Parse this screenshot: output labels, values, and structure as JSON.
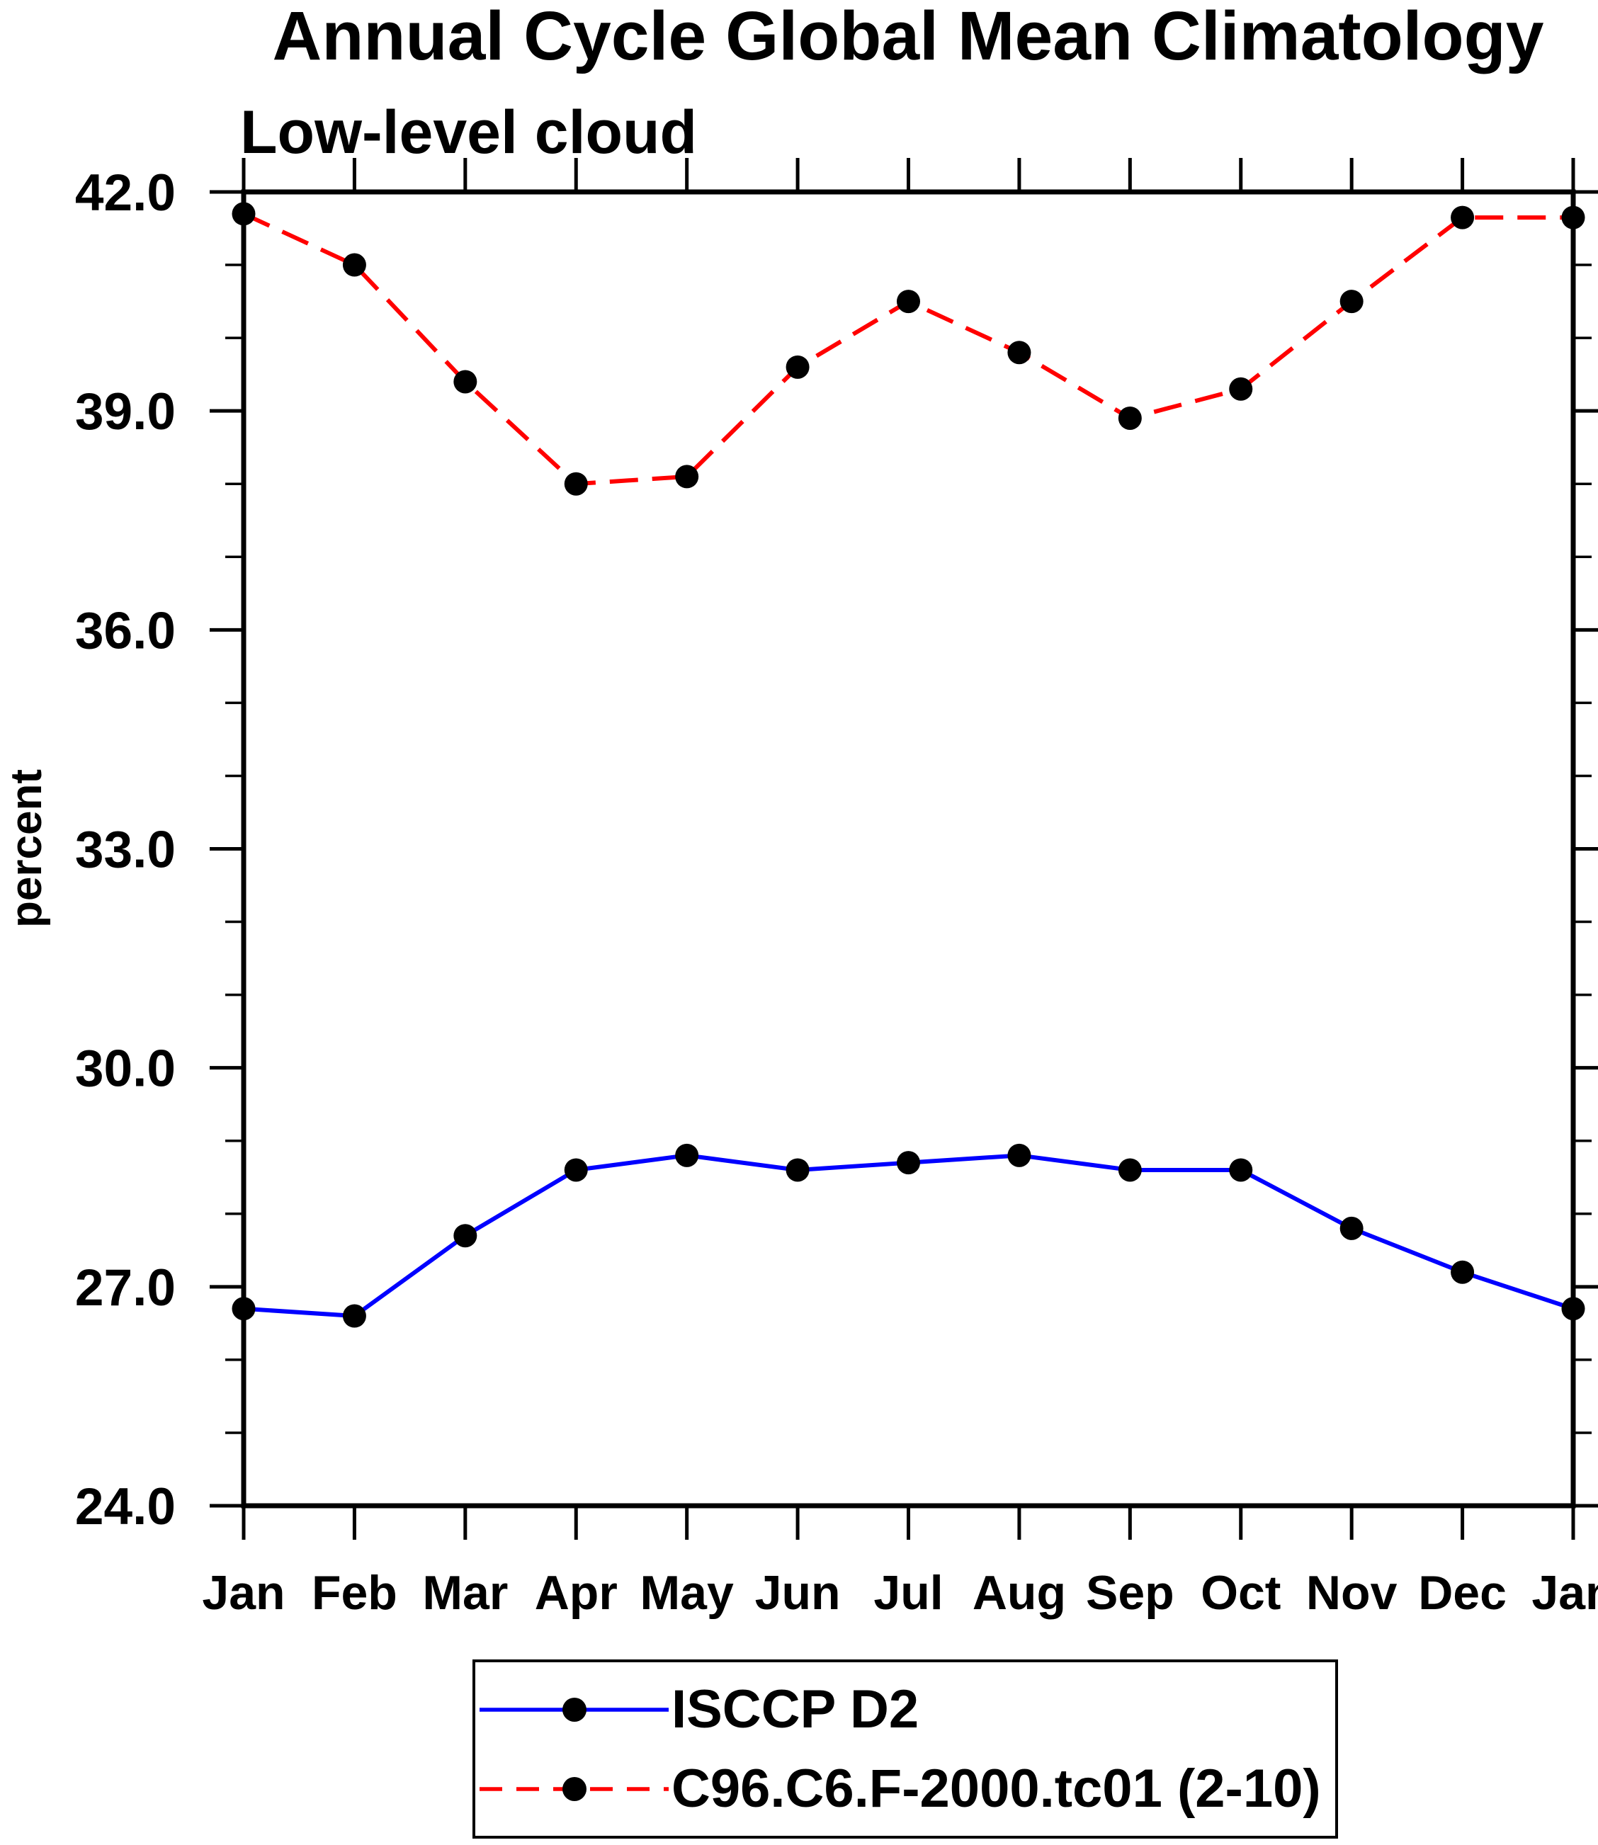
{
  "header": {
    "title": "Annual Cycle Global Mean Climatology",
    "subtitle": "Low-level cloud"
  },
  "y_axis": {
    "label": "percent",
    "tick_labels": [
      "24.0",
      "27.0",
      "30.0",
      "33.0",
      "36.0",
      "39.0",
      "42.0"
    ]
  },
  "x_axis": {
    "tick_labels": [
      "Jan",
      "Feb",
      "Mar",
      "Apr",
      "May",
      "Jun",
      "Jul",
      "Aug",
      "Sep",
      "Oct",
      "Nov",
      "Dec",
      "Jan"
    ]
  },
  "legend": {
    "entries": [
      {
        "label": "ISCCP D2",
        "color": "#0000ff",
        "line_style": "solid"
      },
      {
        "label": "C96.C6.F-2000.tc01 (2-10)",
        "color": "#ff0000",
        "line_style": "dashed"
      }
    ]
  },
  "colors": {
    "background": "#ffffff",
    "axis": "#000000",
    "text": "#000000",
    "marker": "#000000",
    "series_blue": "#0000ff",
    "series_red": "#ff0000"
  },
  "chart_data": {
    "type": "line",
    "title": "Annual Cycle Global Mean Climatology",
    "subtitle": "Low-level cloud",
    "xlabel": "",
    "ylabel": "percent",
    "categories": [
      "Jan",
      "Feb",
      "Mar",
      "Apr",
      "May",
      "Jun",
      "Jul",
      "Aug",
      "Sep",
      "Oct",
      "Nov",
      "Dec",
      "Jan"
    ],
    "ylim": [
      24.0,
      42.0
    ],
    "y_major_step": 3.0,
    "y_minor_step": 1.0,
    "grid": false,
    "legend_position": "bottom-center",
    "series": [
      {
        "name": "ISCCP D2",
        "color": "#0000ff",
        "line_style": "solid",
        "marker": "filled-circle",
        "marker_color": "#000000",
        "values": [
          26.7,
          26.6,
          27.7,
          28.6,
          28.8,
          28.6,
          28.7,
          28.8,
          28.6,
          28.6,
          27.8,
          27.2,
          26.7
        ]
      },
      {
        "name": "C96.C6.F-2000.tc01 (2-10)",
        "color": "#ff0000",
        "line_style": "dashed",
        "marker": "filled-circle",
        "marker_color": "#000000",
        "values": [
          41.7,
          41.0,
          39.4,
          38.0,
          38.1,
          39.6,
          40.5,
          39.8,
          38.9,
          39.3,
          40.5,
          41.65,
          41.65
        ]
      }
    ]
  }
}
